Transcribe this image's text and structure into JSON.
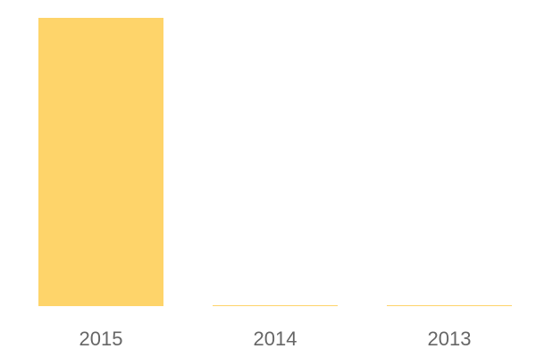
{
  "chart_data": {
    "type": "bar",
    "categories": [
      "2015",
      "2014",
      "2013"
    ],
    "values": [
      100,
      0.3,
      0.3
    ],
    "ylim": [
      0,
      100
    ],
    "grid": false,
    "bar_color": "#fed46a",
    "tick_color": "#666666"
  }
}
